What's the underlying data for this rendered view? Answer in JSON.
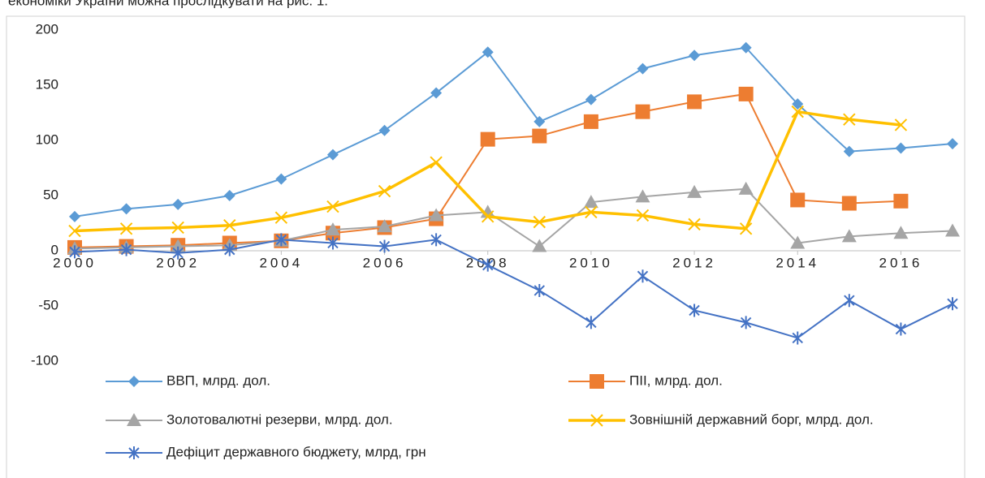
{
  "caption": "економіки України можна прослідкувати на рис. 1.",
  "chart_data": {
    "type": "line",
    "x": [
      2000,
      2001,
      2002,
      2003,
      2004,
      2005,
      2006,
      2007,
      2008,
      2009,
      2010,
      2011,
      2012,
      2013,
      2014,
      2015,
      2016,
      2017
    ],
    "xlim": [
      2000,
      2017
    ],
    "xticks": [
      2000,
      2002,
      2004,
      2006,
      2008,
      2010,
      2012,
      2014,
      2016
    ],
    "ylim": [
      -100,
      200
    ],
    "yticks": [
      -100,
      -50,
      0,
      50,
      100,
      150,
      200
    ],
    "legend": "bottom",
    "grid": false,
    "series": [
      {
        "name": "ВВП, млрд. дол.",
        "color": "#5b9bd5",
        "marker": "diamond",
        "values": [
          31,
          38,
          42,
          50,
          65,
          87,
          109,
          143,
          180,
          117,
          137,
          165,
          177,
          184,
          133,
          90,
          93,
          97
        ]
      },
      {
        "name": "ПІІ, млрд. дол.",
        "color": "#ed7d31",
        "marker": "square",
        "values": [
          3,
          4,
          5,
          7,
          9,
          16,
          21,
          29,
          101,
          104,
          117,
          126,
          135,
          142,
          46,
          43,
          45,
          null
        ]
      },
      {
        "name": "Золотовалютні резерви, млрд. дол.",
        "color": "#a5a5a5",
        "marker": "triangle",
        "values": [
          2,
          3,
          4,
          5,
          9,
          19,
          22,
          32,
          35,
          4,
          44,
          49,
          53,
          56,
          7,
          13,
          16,
          18
        ]
      },
      {
        "name": "Зовнішній державний борг, млрд. дол.",
        "color": "#ffc000",
        "marker": "x",
        "values": [
          18,
          20,
          21,
          23,
          30,
          40,
          54,
          80,
          31,
          26,
          35,
          32,
          24,
          20,
          126,
          119,
          114,
          null
        ]
      },
      {
        "name": "Дефіцит державного бюджету, млрд, грн",
        "color": "#4472c4",
        "marker": "star",
        "values": [
          -1,
          1,
          -2,
          1,
          10,
          7,
          4,
          10,
          -13,
          -36,
          -65,
          -23,
          -54,
          -65,
          -79,
          -45,
          -71,
          -48
        ]
      }
    ]
  }
}
